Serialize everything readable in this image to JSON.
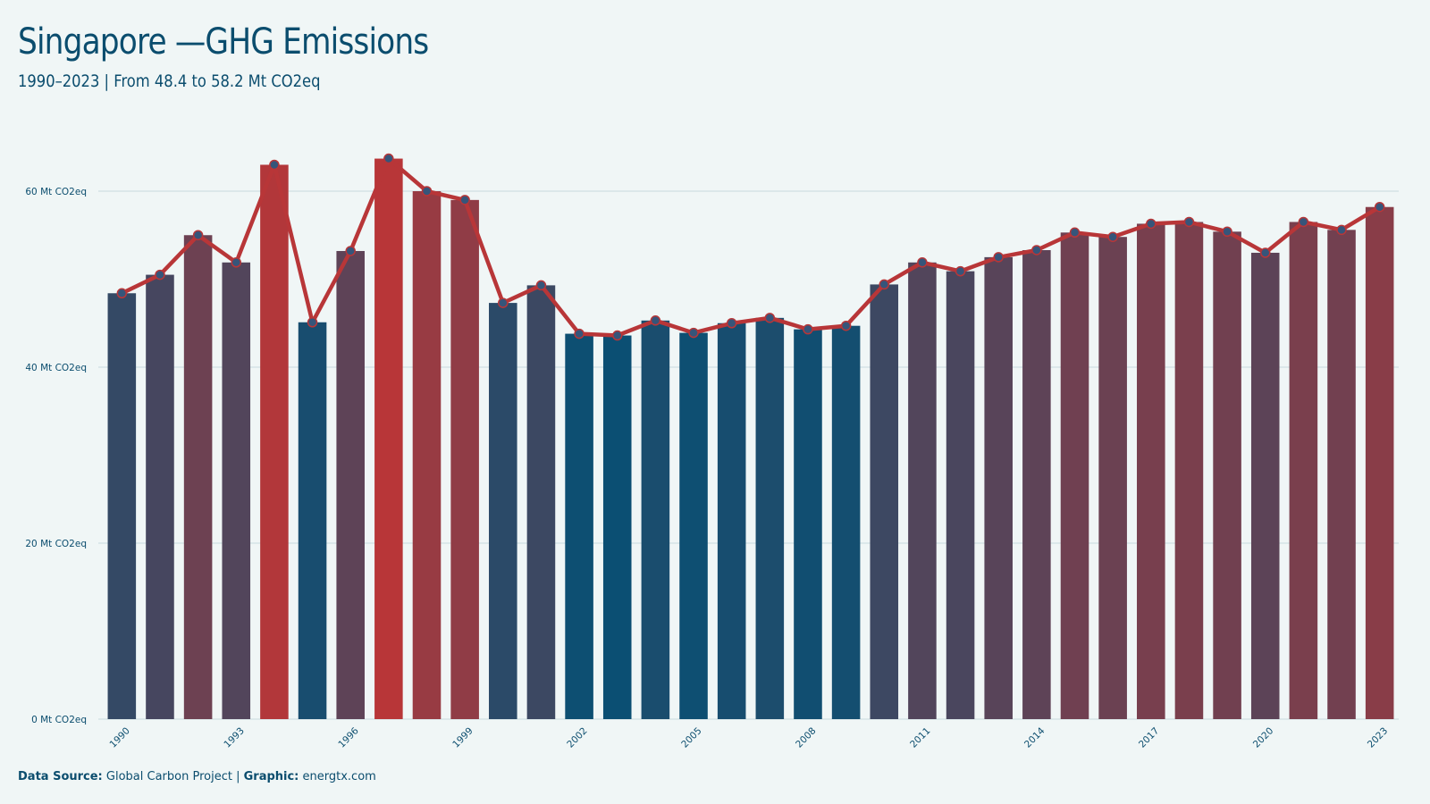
{
  "title": "Singapore —GHG Emissions",
  "subtitle": "1990–2023 | From 48.4 to 58.2 Mt CO2eq",
  "footer": {
    "source_label": "Data Source:",
    "source_value": "Global Carbon Project",
    "separator": " | ",
    "graphic_label": "Graphic:",
    "graphic_value": "energtx.com"
  },
  "colors": {
    "background": "#f0f6f6",
    "text": "#0b4d6e",
    "low": "#0b4f73",
    "high": "#b83638",
    "line": "#b83638",
    "marker": "#36557a",
    "grid": "#d6e4e6"
  },
  "chart_data": {
    "type": "bar",
    "title": "Singapore —GHG Emissions",
    "subtitle": "1990–2023 | From 48.4 to 58.2 Mt CO2eq",
    "xlabel": "",
    "ylabel": "",
    "unit": "Mt CO2eq",
    "ylim": [
      0,
      60
    ],
    "y_ticks": [
      0,
      20,
      40,
      60
    ],
    "y_tick_labels": [
      "0 Mt CO2eq",
      "20 Mt CO2eq",
      "40 Mt CO2eq",
      "60 Mt CO2eq"
    ],
    "x_tick_labels": [
      "1990",
      "1993",
      "1996",
      "1999",
      "2002",
      "2005",
      "2008",
      "2011",
      "2014",
      "2017",
      "2020",
      "2023"
    ],
    "grid": true,
    "overlay": "line",
    "categories": [
      "1990",
      "1991",
      "1992",
      "1993",
      "1994",
      "1995",
      "1996",
      "1997",
      "1998",
      "1999",
      "2000",
      "2001",
      "2002",
      "2003",
      "2004",
      "2005",
      "2006",
      "2007",
      "2008",
      "2009",
      "2010",
      "2011",
      "2012",
      "2013",
      "2014",
      "2015",
      "2016",
      "2017",
      "2018",
      "2019",
      "2020",
      "2021",
      "2022",
      "2023"
    ],
    "values": [
      48.4,
      50.5,
      55.0,
      51.9,
      63.0,
      45.1,
      53.2,
      63.7,
      60.0,
      59.0,
      47.3,
      49.3,
      43.8,
      43.6,
      45.3,
      43.9,
      45.0,
      45.6,
      44.3,
      44.7,
      49.4,
      51.9,
      50.9,
      52.5,
      53.3,
      55.3,
      54.8,
      56.3,
      56.5,
      55.4,
      53.0,
      56.5,
      55.6,
      58.2
    ]
  }
}
